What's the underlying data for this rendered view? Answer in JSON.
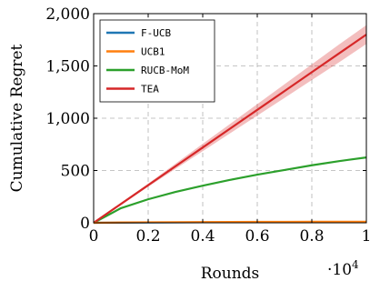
{
  "chart_data": {
    "type": "line",
    "xlabel": "Rounds",
    "ylabel": "Cumulative Regret",
    "x_multiplier_label": "·10",
    "x_multiplier_exponent": "4",
    "xlim": [
      0,
      1
    ],
    "ylim": [
      0,
      2000
    ],
    "x_ticks": [
      0,
      0.2,
      0.4,
      0.6,
      0.8,
      1
    ],
    "x_tick_labels": [
      "0",
      "0.2",
      "0.4",
      "0.6",
      "0.8",
      "1"
    ],
    "y_ticks": [
      0,
      500,
      1000,
      1500,
      2000
    ],
    "y_tick_labels": [
      "0",
      "500",
      "1,000",
      "1,500",
      "2,000"
    ],
    "grid": true,
    "legend_position": "top-left",
    "x": [
      0,
      0.1,
      0.2,
      0.3,
      0.4,
      0.5,
      0.6,
      0.7,
      0.8,
      0.9,
      1.0
    ],
    "series": [
      {
        "name": "F-UCB",
        "color": "#1f77b4",
        "values": [
          0,
          2,
          3,
          4,
          5,
          5,
          6,
          6,
          6,
          7,
          7
        ]
      },
      {
        "name": "UCB1",
        "color": "#ff7f0e",
        "values": [
          0,
          3,
          5,
          6,
          7,
          8,
          9,
          9,
          10,
          10,
          10
        ]
      },
      {
        "name": "RUCB-MoM",
        "color": "#2ca02c",
        "values": [
          0,
          140,
          225,
          295,
          355,
          410,
          460,
          505,
          550,
          590,
          625
        ]
      },
      {
        "name": "TEA",
        "color": "#d62728",
        "values": [
          0,
          180,
          360,
          540,
          720,
          900,
          1080,
          1260,
          1440,
          1620,
          1800
        ],
        "band_lower": [
          0,
          170,
          345,
          515,
          685,
          855,
          1025,
          1195,
          1365,
          1535,
          1710
        ],
        "band_upper": [
          0,
          190,
          375,
          565,
          755,
          945,
          1135,
          1325,
          1515,
          1705,
          1890
        ]
      }
    ]
  }
}
